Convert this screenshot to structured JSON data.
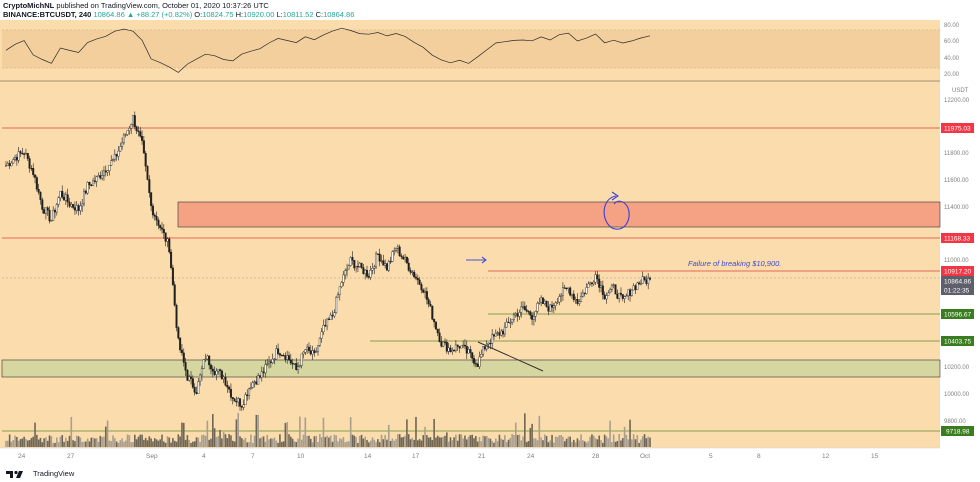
{
  "header": {
    "author": "CryptoMichNL",
    "published": " published on TradingView.com, October 01, 2020 10:37:26 UTC",
    "symbol": "BINANCE:BTCUSDT, 240",
    "change": "10864.86 ▲ +88.27 (+0.82%)",
    "ohlc": {
      "o_label": "O:",
      "o": "10824.75",
      "h_label": "H:",
      "h": "10920.00",
      "l_label": "L:",
      "l": "10811.52",
      "c_label": "C:",
      "c": "10864.86"
    }
  },
  "rsi_axis": {
    "ticks": [
      "80.00",
      "60.00",
      "40.00",
      "20.00"
    ]
  },
  "price_axis": {
    "unit": "USDT",
    "ticks": [
      "12200.00",
      "11800.00",
      "11600.00",
      "11400.00",
      "11000.00",
      "10200.00",
      "10000.00",
      "9800.00"
    ]
  },
  "price_labels": [
    {
      "text": "11975.03",
      "color": "#f23645"
    },
    {
      "text": "11168.33",
      "color": "#f23645"
    },
    {
      "text": "10917.20",
      "color": "#f23645"
    },
    {
      "text": "10864.86",
      "color": "#5d606b"
    },
    {
      "text": "01:22:35",
      "color": "#5d606b"
    },
    {
      "text": "10596.67",
      "color": "#3a7d1f"
    },
    {
      "text": "10403.75",
      "color": "#3a7d1f"
    },
    {
      "text": "9718.98",
      "color": "#3a7d1f"
    }
  ],
  "x_axis": {
    "ticks": [
      "24",
      "27",
      "Sep",
      "4",
      "7",
      "10",
      "14",
      "17",
      "21",
      "24",
      "28",
      "Oct",
      "5",
      "8",
      "12",
      "15"
    ]
  },
  "annotation": "Failure of breaking $10,900.",
  "colors": {
    "background": "#fbdcad",
    "resistance_line": "#e0433a",
    "support_line": "#5c8a2e",
    "resistance_zone": "#f5a184",
    "support_zone": "#d6d6a0",
    "rsi_band": "#f2cf9c"
  },
  "footer": {
    "brand": "TradingView"
  },
  "chart_data": {
    "type": "candlestick",
    "symbol": "BINANCE:BTCUSDT",
    "timeframe": "240",
    "ohlc_last": {
      "open": 10824.75,
      "high": 10920.0,
      "low": 10811.52,
      "close": 10864.86
    },
    "resistance_levels": [
      11975.03,
      11168.33,
      10917.2
    ],
    "support_levels": [
      10596.67,
      10403.75,
      9718.98
    ],
    "resistance_zone": [
      11260,
      11410
    ],
    "support_zone": [
      10120,
      10245
    ],
    "price_path": [
      11700,
      11760,
      11800,
      11650,
      11400,
      11300,
      11500,
      11420,
      11380,
      11550,
      11600,
      11680,
      11750,
      11900,
      12050,
      11850,
      11400,
      11250,
      11100,
      10400,
      10150,
      10050,
      10300,
      10200,
      10150,
      10000,
      9950,
      10100,
      10150,
      10250,
      10350,
      10300,
      10200,
      10350,
      10300,
      10500,
      10600,
      10850,
      11000,
      10950,
      10900,
      11050,
      10950,
      11100,
      11000,
      10900,
      10800,
      10600,
      10400,
      10350,
      10380,
      10320,
      10250,
      10400,
      10450,
      10500,
      10600,
      10650,
      10600,
      10700,
      10650,
      10750,
      10800,
      10700,
      10800,
      10900,
      10750,
      10800,
      10700,
      10800,
      10850,
      10864.86
    ],
    "rsi": [
      50,
      55,
      60,
      45,
      38,
      35,
      52,
      48,
      46,
      58,
      62,
      66,
      70,
      74,
      72,
      60,
      40,
      34,
      30,
      25,
      32,
      38,
      45,
      42,
      40,
      38,
      44,
      48,
      52,
      58,
      62,
      60,
      57,
      63,
      60,
      66,
      70,
      74,
      72,
      68,
      66,
      70,
      65,
      68,
      64,
      58,
      52,
      44,
      38,
      34,
      38,
      35,
      42,
      50,
      56,
      58,
      60,
      62,
      60,
      64,
      62,
      66,
      68,
      60,
      64,
      68,
      58,
      62,
      56,
      60,
      62,
      64
    ],
    "rsi_range": [
      20,
      80
    ]
  }
}
